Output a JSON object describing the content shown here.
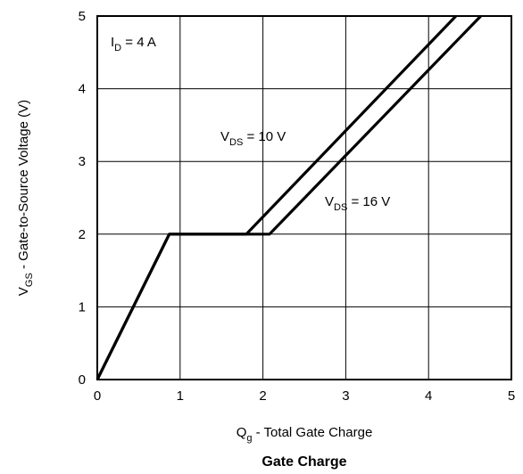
{
  "chart_data": {
    "type": "line",
    "title": "Gate Charge",
    "xlabel": {
      "main": "Q",
      "sub": "g",
      "rest": " - Total Gate Charge"
    },
    "ylabel": {
      "main": "V",
      "sub": "GS",
      "rest": " - Gate-to-Source Voltage (V)"
    },
    "xlim": [
      0,
      5
    ],
    "ylim": [
      0,
      5
    ],
    "xticks": [
      "0",
      "1",
      "2",
      "3",
      "4",
      "5"
    ],
    "yticks": [
      "0",
      "1",
      "2",
      "3",
      "4",
      "5"
    ],
    "grid": true,
    "line_color": "#000000",
    "series": [
      {
        "name": "VDS = 10 V",
        "x": [
          0,
          0.87,
          1.8,
          4.33
        ],
        "y": [
          0,
          2,
          2,
          5
        ]
      },
      {
        "name": "VDS = 16 V",
        "x": [
          0,
          0.87,
          2.08,
          4.63
        ],
        "y": [
          0,
          2,
          2,
          5
        ]
      }
    ],
    "annotations": [
      {
        "main": "I",
        "sub": "D",
        "rest": " = 4 A"
      },
      {
        "main": "V",
        "sub": "DS",
        "rest": " = 10 V"
      },
      {
        "main": "V",
        "sub": "DS",
        "rest": " = 16 V"
      }
    ]
  }
}
